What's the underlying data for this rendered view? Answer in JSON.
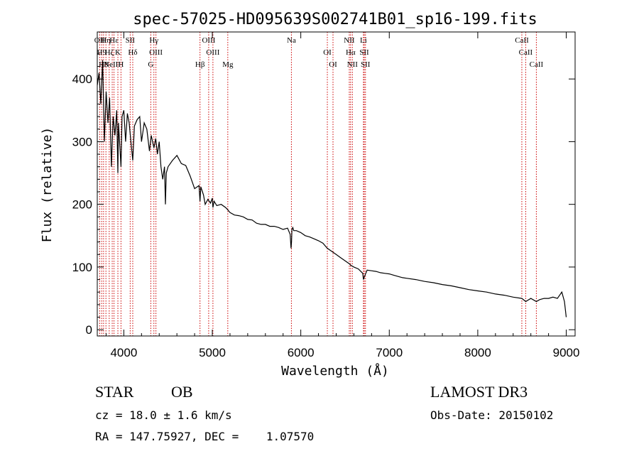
{
  "chart_data": {
    "type": "line",
    "title": "spec-57025-HD095639S002741B01_sp16-199.fits",
    "xlabel": "Wavelength (Å)",
    "ylabel": "Flux (relative)",
    "xlim": [
      3700,
      9100
    ],
    "ylim": [
      -10,
      475
    ],
    "x_ticks": [
      4000,
      5000,
      6000,
      7000,
      8000,
      9000
    ],
    "y_ticks": [
      0,
      100,
      200,
      300,
      400
    ],
    "series": [
      {
        "name": "spectrum",
        "x": [
          3700,
          3720,
          3740,
          3760,
          3780,
          3800,
          3820,
          3840,
          3860,
          3880,
          3900,
          3920,
          3933,
          3940,
          3960,
          3968,
          3980,
          4000,
          4020,
          4040,
          4060,
          4080,
          4101,
          4120,
          4150,
          4180,
          4200,
          4230,
          4260,
          4290,
          4310,
          4340,
          4360,
          4380,
          4400,
          4420,
          4440,
          4460,
          4470,
          4480,
          4500,
          4550,
          4600,
          4650,
          4700,
          4750,
          4800,
          4850,
          4861,
          4870,
          4900,
          4920,
          4950,
          4980,
          5000,
          5007,
          5020,
          5050,
          5100,
          5150,
          5170,
          5200,
          5250,
          5300,
          5350,
          5400,
          5450,
          5500,
          5550,
          5600,
          5650,
          5700,
          5750,
          5800,
          5850,
          5880,
          5890,
          5895,
          5900,
          5910,
          5920,
          5950,
          6000,
          6050,
          6100,
          6150,
          6200,
          6250,
          6300,
          6350,
          6400,
          6450,
          6500,
          6550,
          6563,
          6600,
          6650,
          6700,
          6708,
          6720,
          6750,
          6800,
          6850,
          6900,
          6950,
          7000,
          7050,
          7100,
          7150,
          7200,
          7300,
          7400,
          7500,
          7600,
          7700,
          7800,
          7900,
          8000,
          8100,
          8200,
          8300,
          8400,
          8498,
          8542,
          8600,
          8662,
          8700,
          8750,
          8800,
          8850,
          8900,
          8950,
          8980,
          9000
        ],
        "y": [
          390,
          410,
          360,
          430,
          300,
          380,
          330,
          370,
          260,
          340,
          310,
          350,
          250,
          330,
          280,
          260,
          340,
          350,
          300,
          345,
          330,
          300,
          270,
          325,
          335,
          340,
          300,
          330,
          320,
          285,
          310,
          290,
          305,
          280,
          300,
          260,
          240,
          260,
          200,
          250,
          260,
          270,
          278,
          265,
          262,
          245,
          225,
          230,
          205,
          228,
          215,
          200,
          208,
          202,
          210,
          195,
          205,
          198,
          200,
          195,
          192,
          187,
          183,
          182,
          180,
          176,
          175,
          170,
          168,
          168,
          165,
          165,
          163,
          160,
          162,
          152,
          130,
          140,
          160,
          163,
          158,
          158,
          155,
          150,
          148,
          145,
          142,
          138,
          130,
          125,
          120,
          115,
          110,
          105,
          103,
          100,
          97,
          90,
          80,
          85,
          95,
          94,
          93,
          91,
          90,
          89,
          87,
          85,
          83,
          82,
          80,
          77,
          75,
          72,
          70,
          67,
          64,
          62,
          60,
          57,
          55,
          52,
          50,
          45,
          50,
          45,
          48,
          50,
          50,
          52,
          50,
          60,
          45,
          20
        ],
        "color": "#000000"
      }
    ],
    "line_markers": [
      {
        "wavelength": 3727,
        "label": "OII"
      },
      {
        "wavelength": 3750,
        "label": "H9"
      },
      {
        "wavelength": 3771,
        "label": "H8"
      },
      {
        "wavelength": 3798,
        "label": "Hη"
      },
      {
        "wavelength": 3835,
        "label": "Hζ"
      },
      {
        "wavelength": 3869,
        "label": "NeIII"
      },
      {
        "wavelength": 3889,
        "label": "Hε"
      },
      {
        "wavelength": 3933,
        "label": "K"
      },
      {
        "wavelength": 3968,
        "label": "H"
      },
      {
        "wavelength": 4072,
        "label": "SII"
      },
      {
        "wavelength": 4101,
        "label": "Hδ"
      },
      {
        "wavelength": 4305,
        "label": "G"
      },
      {
        "wavelength": 4340,
        "label": "Hγ"
      },
      {
        "wavelength": 4363,
        "label": "OIII"
      },
      {
        "wavelength": 4861,
        "label": "Hβ"
      },
      {
        "wavelength": 4959,
        "label": "OIII"
      },
      {
        "wavelength": 5007,
        "label": "OIII"
      },
      {
        "wavelength": 5175,
        "label": "Mg"
      },
      {
        "wavelength": 5894,
        "label": "Na"
      },
      {
        "wavelength": 6300,
        "label": "OI"
      },
      {
        "wavelength": 6364,
        "label": "OI"
      },
      {
        "wavelength": 6548,
        "label": "NII"
      },
      {
        "wavelength": 6563,
        "label": "Hα"
      },
      {
        "wavelength": 6583,
        "label": "NII"
      },
      {
        "wavelength": 6708,
        "label": "Li"
      },
      {
        "wavelength": 6717,
        "label": "SII"
      },
      {
        "wavelength": 6731,
        "label": "SII"
      },
      {
        "wavelength": 8498,
        "label": "CaII"
      },
      {
        "wavelength": 8542,
        "label": "CaII"
      },
      {
        "wavelength": 8662,
        "label": "CaII"
      }
    ],
    "marker_color": "#cc0000"
  },
  "info": {
    "class_label": "STAR",
    "subclass_label": "OB",
    "survey": "LAMOST DR3",
    "cz_text": "cz = 18.0 ± 1.6 km/s",
    "obs_date_text": "Obs-Date: 20150102",
    "radec_text": "RA = 147.75927, DEC =    1.07570"
  }
}
